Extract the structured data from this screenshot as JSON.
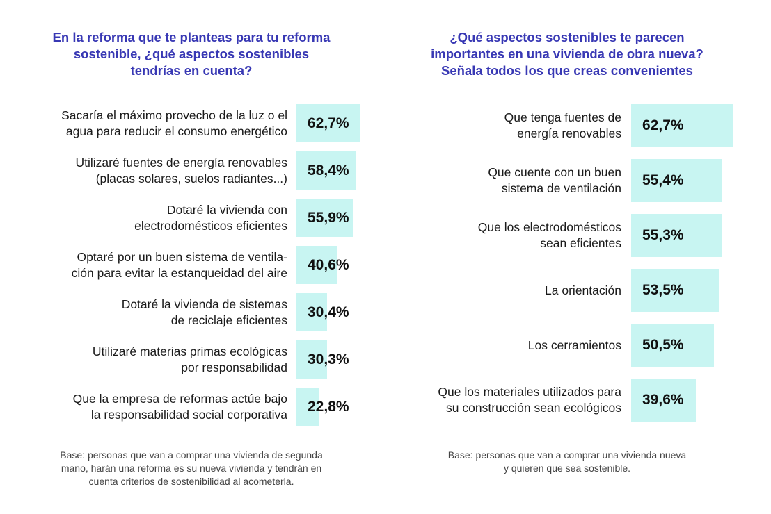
{
  "chart_data": [
    {
      "type": "bar",
      "orientation": "horizontal",
      "title": "En la reforma que te planteas para tu reforma\nsostenible, ¿qué aspectos sostenibles\ntendrías en cuenta?",
      "categories": [
        "Sacaría el máximo provecho de la luz o el\nagua para reducir el consumo energético",
        "Utilizaré fuentes de energía renovables\n(placas solares, suelos radiantes...)",
        "Dotaré la vivienda con\nelectrodomésticos eficientes",
        "Optaré por un buen sistema de ventila-\nción para evitar la estanqueidad del aire",
        "Dotaré la vivienda de sistemas\nde reciclaje eficientes",
        "Utilizaré materias primas ecológicas\npor responsabilidad",
        "Que la empresa de reformas actúe bajo\nla responsabilidad social corporativa"
      ],
      "values": [
        62.7,
        58.4,
        55.9,
        40.6,
        30.4,
        30.3,
        22.8
      ],
      "value_labels": [
        "62,7%",
        "58,4%",
        "55,9%",
        "40,6%",
        "30,4%",
        "30,3%",
        "22,8%"
      ],
      "bar_color": "#c8f5f2",
      "note": "Base: personas que van a comprar una vivienda de segunda\nmano, harán una reforma es su nueva vivienda y tendrán en\ncuenta criterios de sostenibilidad al acometerla."
    },
    {
      "type": "bar",
      "orientation": "horizontal",
      "title": "¿Qué aspectos sostenibles te parecen\nimportantes en una vivienda de obra nueva?\nSeñala todos los que creas convenientes",
      "categories": [
        "Que tenga fuentes de\nenergía renovables",
        "Que cuente con un buen\nsistema de ventilación",
        "Que los electrodomésticos\nsean eficientes",
        "La orientación",
        "Los cerramientos",
        "Que los materiales utilizados para\nsu construcción sean ecológicos"
      ],
      "values": [
        62.7,
        55.4,
        55.3,
        53.5,
        50.5,
        39.6
      ],
      "value_labels": [
        "62,7%",
        "55,4%",
        "55,3%",
        "53,5%",
        "50,5%",
        "39,6%"
      ],
      "bar_color": "#c8f5f2",
      "note": "Base: personas que van a comprar una vivienda nueva\ny quieren que sea sostenible."
    }
  ],
  "title_color": "#3838b4"
}
